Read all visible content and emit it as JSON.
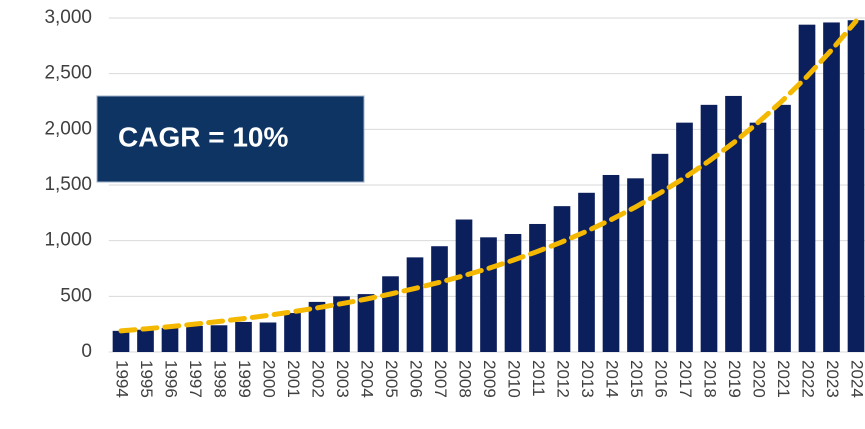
{
  "chart_data": {
    "type": "bar",
    "categories": [
      "1994",
      "1995",
      "1996",
      "1997",
      "1998",
      "1999",
      "2000",
      "2001",
      "2002",
      "2003",
      "2004",
      "2005",
      "2006",
      "2007",
      "2008",
      "2009",
      "2010",
      "2011",
      "2012",
      "2013",
      "2014",
      "2015",
      "2016",
      "2017",
      "2018",
      "2019",
      "2020",
      "2021",
      "2022",
      "2023",
      "2024"
    ],
    "values": [
      190,
      200,
      215,
      235,
      240,
      270,
      265,
      350,
      450,
      500,
      520,
      680,
      850,
      950,
      1190,
      1030,
      1060,
      1150,
      1310,
      1430,
      1590,
      1560,
      1780,
      2060,
      2220,
      2300,
      2060,
      2220,
      2940,
      2960,
      2980
    ],
    "color": "#0b1f5c",
    "trend": {
      "values": [
        190,
        208,
        228,
        250,
        274,
        300,
        329,
        361,
        396,
        434,
        475,
        521,
        571,
        626,
        686,
        751,
        824,
        903,
        989,
        1084,
        1188,
        1302,
        1428,
        1565,
        1715,
        1879,
        2060,
        2258,
        2474,
        2712,
        2972
      ],
      "color": "#f5b800",
      "dashed": true
    },
    "annotation": "CAGR = 10%",
    "ylim": [
      0,
      3000
    ],
    "yticks": [
      0,
      {
        "value": 500,
        "label": "500"
      },
      {
        "value": 1000,
        "label": "1,000"
      },
      {
        "value": 1500,
        "label": "1,500"
      },
      {
        "value": 2000,
        "label": "2,000"
      },
      {
        "value": 2500,
        "label": "2,500"
      },
      {
        "value": 3000,
        "label": "3,000"
      }
    ],
    "grid": true
  }
}
